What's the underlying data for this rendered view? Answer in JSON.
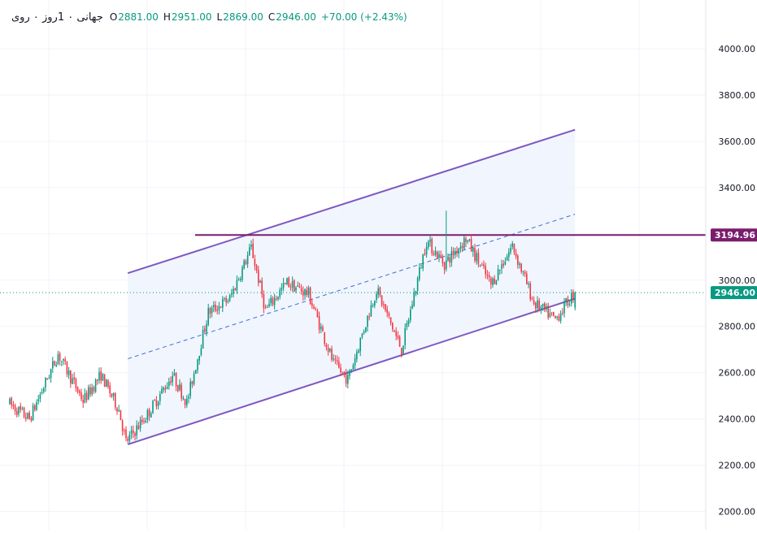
{
  "legend": {
    "symbol": "جهانی ۰ 1روز ۰ روی",
    "open_label": "O",
    "open": "2881.00",
    "high_label": "H",
    "high": "2951.00",
    "low_label": "L",
    "low": "2869.00",
    "close_label": "C",
    "close": "2946.00",
    "change": "+70.00 (+2.43%)"
  },
  "colors": {
    "up": "#089981",
    "down": "#f23645",
    "channel": "#7e57c2",
    "channel_fill": "#eef3fd",
    "resistance": "#7b1d6e",
    "last_price": "#089981",
    "grid": "#f0f3fa"
  },
  "chart_data": {
    "type": "candlestick",
    "ylim": [
      1950,
      4100
    ],
    "y_ticks": [
      "2000.00",
      "2200.00",
      "2400.00",
      "2600.00",
      "2800.00",
      "3000.00",
      "3200.00",
      "3400.00",
      "3600.00",
      "3800.00",
      "4000.00"
    ],
    "x_tick_labels": [],
    "candle_count": 270,
    "price_path": [
      [
        0,
        2470
      ],
      [
        12,
        2400
      ],
      [
        28,
        2680
      ],
      [
        42,
        2480
      ],
      [
        52,
        2590
      ],
      [
        62,
        2440
      ],
      [
        66,
        2300
      ],
      [
        78,
        2420
      ],
      [
        92,
        2590
      ],
      [
        100,
        2470
      ],
      [
        112,
        2860
      ],
      [
        124,
        2920
      ],
      [
        136,
        3140
      ],
      [
        144,
        2870
      ],
      [
        156,
        2990
      ],
      [
        168,
        2940
      ],
      [
        182,
        2640
      ],
      [
        190,
        2570
      ],
      [
        206,
        2960
      ],
      [
        220,
        2700
      ],
      [
        234,
        3170
      ],
      [
        244,
        3070
      ],
      [
        256,
        3180
      ],
      [
        270,
        2980
      ],
      [
        282,
        3150
      ],
      [
        294,
        2900
      ],
      [
        306,
        2830
      ],
      [
        316,
        2940
      ]
    ],
    "last_candle": {
      "open": 2881,
      "high": 2951,
      "low": 2869,
      "close": 2946
    },
    "resistance_level": 3194.96,
    "resistance_label": "3194.96",
    "last_price": 2946.0,
    "last_price_label": "2946.00",
    "channel": {
      "lower": {
        "start": [
          66,
          2290
        ],
        "end": [
          316,
          2920
        ]
      },
      "upper": {
        "start": [
          66,
          3030
        ],
        "end": [
          316,
          3650
        ]
      },
      "mid_dashed": true
    }
  }
}
